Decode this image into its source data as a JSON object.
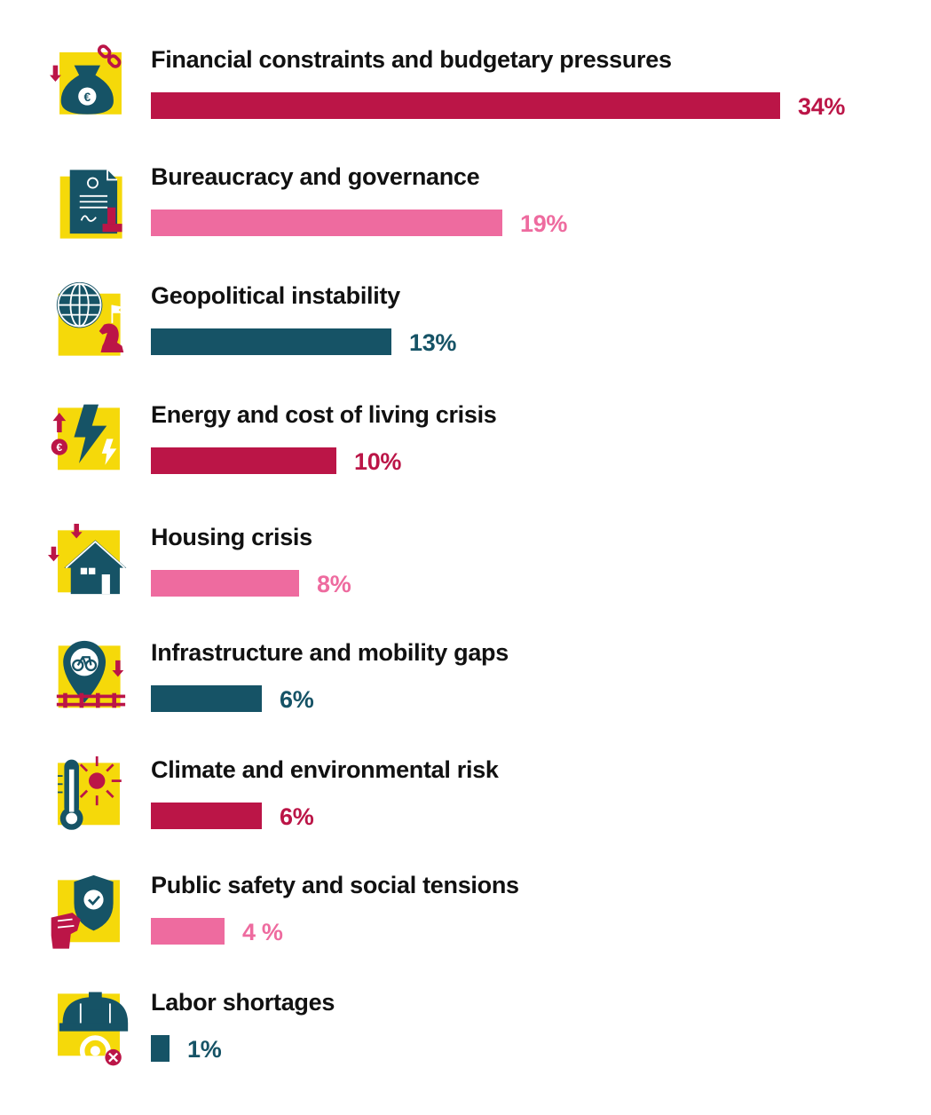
{
  "chart_data": {
    "type": "bar",
    "orientation": "horizontal",
    "title": "",
    "xlabel": "",
    "ylabel": "",
    "xlim": [
      0,
      34
    ],
    "grid": false,
    "categories": [
      "Financial constraints and budgetary pressures",
      "Bureaucracy and governance",
      "Geopolitical instability",
      "Energy and cost of living crisis",
      "Housing crisis",
      "Infrastructure and mobility gaps",
      "Climate and environmental risk",
      "Public safety and social tensions",
      "Labor shortages"
    ],
    "values": [
      34,
      19,
      13,
      10,
      8,
      6,
      6,
      4,
      1
    ],
    "value_labels": [
      "34%",
      "19%",
      "13%",
      "10%",
      "8%",
      "6%",
      "6%",
      "4 %",
      "1%"
    ],
    "bar_colors": [
      "#bb1547",
      "#ee6b9f",
      "#165366",
      "#bb1547",
      "#ee6b9f",
      "#165366",
      "#bb1547",
      "#ee6b9f",
      "#165366"
    ],
    "icons": [
      "money-bag-euro-icon",
      "certificate-stamp-icon",
      "globe-chess-knight-icon",
      "lightning-euro-icon",
      "house-down-arrows-icon",
      "bike-location-pin-icon",
      "thermometer-sun-icon",
      "shield-fist-icon",
      "hard-hat-gear-icon"
    ]
  },
  "colors": {
    "icon_background": "#f5d90a",
    "crimson": "#bb1547",
    "pink": "#ee6b9f",
    "teal": "#165366",
    "text": "#111111"
  }
}
